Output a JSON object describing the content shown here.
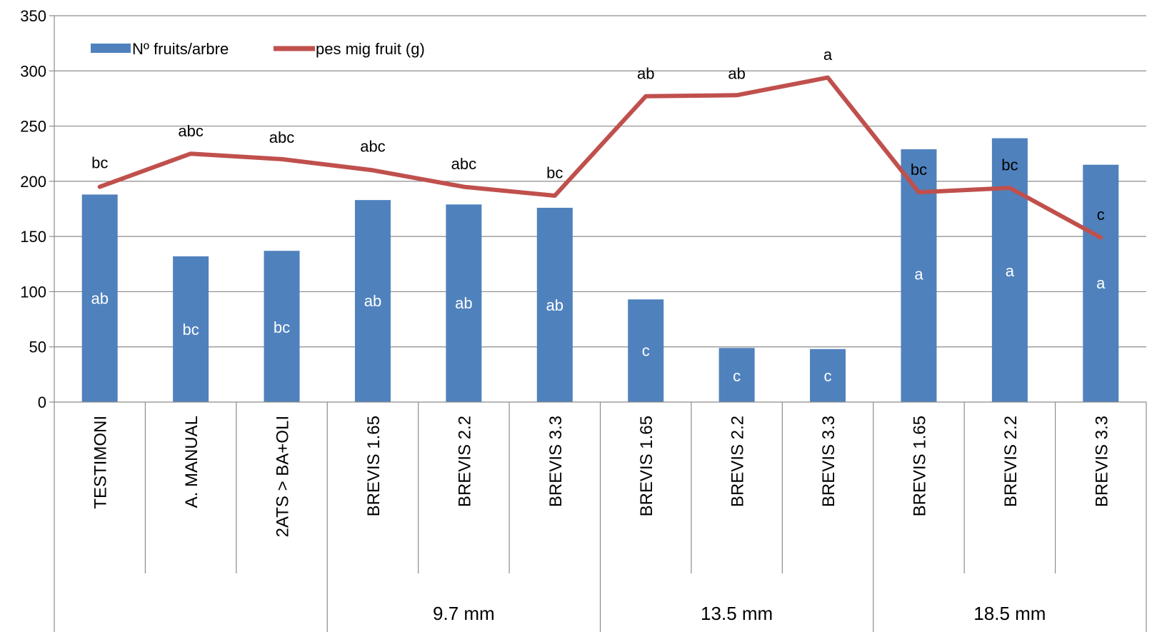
{
  "chart_data": {
    "type": "bar",
    "title": "",
    "xlabel": "",
    "ylabel": "",
    "ylim": [
      0,
      350
    ],
    "yticks": [
      0,
      50,
      100,
      150,
      200,
      250,
      300,
      350
    ],
    "grid": true,
    "legend_position": "top-left",
    "categories": [
      "TESTIMONI",
      "A. MANUAL",
      "2ATS > BA+OLI",
      "BREVIS 1.65",
      "BREVIS 2.2",
      "BREVIS 3.3",
      "BREVIS 1.65",
      "BREVIS 2.2",
      "BREVIS 3.3",
      "BREVIS 1.65",
      "BREVIS 2.2",
      "BREVIS 3.3"
    ],
    "groups": [
      {
        "label": "",
        "start": 0,
        "end": 2
      },
      {
        "label": "9.7 mm",
        "start": 3,
        "end": 5
      },
      {
        "label": "13.5 mm",
        "start": 6,
        "end": 8
      },
      {
        "label": "18.5 mm",
        "start": 9,
        "end": 11
      }
    ],
    "series": [
      {
        "name": "Nº fruits/arbre",
        "type": "bar",
        "color": "#4F81BD",
        "values": [
          188,
          132,
          137,
          183,
          179,
          176,
          93,
          49,
          48,
          229,
          239,
          215
        ],
        "labels": [
          "ab",
          "bc",
          "bc",
          "ab",
          "ab",
          "ab",
          "c",
          "c",
          "c",
          "a",
          "a",
          "a"
        ],
        "label_values": [
          94,
          66,
          68,
          92,
          90,
          88,
          47,
          24,
          24,
          116,
          119,
          108
        ]
      },
      {
        "name": "pes mig fruit (g)",
        "type": "line",
        "color": "#C0504D",
        "values": [
          195,
          225,
          220,
          210,
          195,
          187,
          277,
          278,
          294,
          190,
          194,
          149
        ],
        "labels": [
          "bc",
          "abc",
          "abc",
          "abc",
          "abc",
          "bc",
          "ab",
          "ab",
          "a",
          "bc",
          "bc",
          "c"
        ],
        "label_values": [
          217,
          246,
          240,
          232,
          216,
          208,
          298,
          298,
          315,
          211,
          215,
          170
        ]
      }
    ]
  }
}
